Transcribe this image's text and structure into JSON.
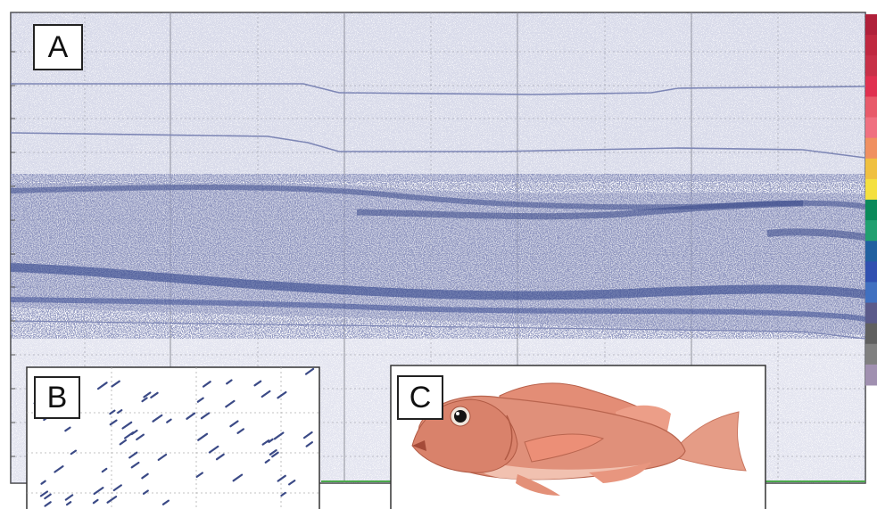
{
  "panels": {
    "a": {
      "label": "A"
    },
    "b": {
      "label": "B"
    },
    "c": {
      "label": "C"
    }
  },
  "colors": {
    "echo_dark": "#3d4f8c",
    "echo_mid": "#6f78a8",
    "echo_light": "#9aa3c4",
    "grid": "#9a9a9a",
    "fish_body": "#d98670",
    "fish_fin": "#e79a88"
  },
  "color_scale": [
    "#b0203a",
    "#c02840",
    "#c83048",
    "#e03050",
    "#e85a6a",
    "#f07080",
    "#f09060",
    "#f0c040",
    "#f4e040",
    "#0a8a5a",
    "#20a070",
    "#2060a0",
    "#3050b0",
    "#4070c0",
    "#5a5a8a",
    "#606060",
    "#808080",
    "#a090b0"
  ],
  "icons": [
    "fish-photo",
    "echogram"
  ]
}
